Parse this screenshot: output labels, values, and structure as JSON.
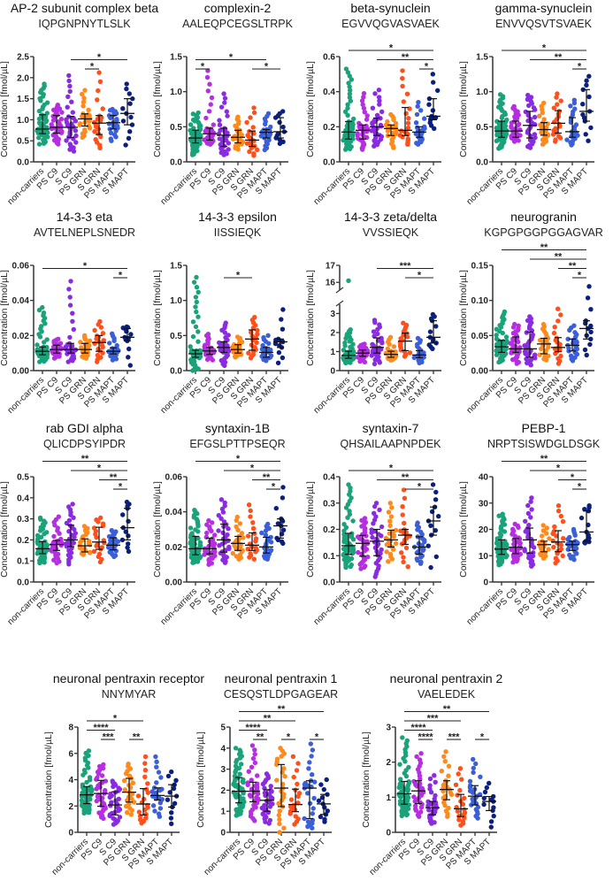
{
  "figure": {
    "y_axis_label": "Concentration [fmol/µL]",
    "groups": [
      "non-carriers",
      "PS C9",
      "S C9",
      "PS GRN",
      "S GRN",
      "PS MAPT",
      "S MAPT"
    ],
    "group_colors": [
      "#1aa37a",
      "#b52fe0",
      "#8a2be2",
      "#ff8a1c",
      "#ff4f1a",
      "#3b5fd8",
      "#0b1f7c"
    ],
    "group_sizes": [
      60,
      35,
      32,
      25,
      20,
      25,
      13
    ]
  },
  "chart_data": [
    {
      "type": "scatter",
      "title": "AP-2 subunit complex beta",
      "peptide": "IQPGNPNYTLSLK",
      "ylim": [
        0,
        2.5
      ],
      "yticks": [
        0,
        0.5,
        1,
        1.5,
        2,
        2.5
      ],
      "ytick_labels": [
        "0.0",
        "0.5",
        "1.0",
        "1.5",
        "2.0",
        "2.5"
      ],
      "median": [
        0.78,
        0.82,
        0.82,
        1.02,
        0.92,
        0.93,
        1.15
      ],
      "q1": [
        0.67,
        0.68,
        0.58,
        0.85,
        0.65,
        0.78,
        0.88
      ],
      "q3": [
        1.12,
        1.1,
        1.08,
        1.14,
        1.1,
        1.1,
        1.5
      ],
      "min": [
        0.42,
        0.42,
        0.25,
        0.58,
        0.33,
        0.5,
        0.4
      ],
      "max": [
        1.85,
        1.35,
        2.05,
        1.7,
        2.12,
        1.25,
        1.85
      ],
      "significance": [
        {
          "from": 2,
          "to": 6,
          "label": "*"
        },
        {
          "from": 3,
          "to": 4,
          "label": "*"
        }
      ]
    },
    {
      "type": "scatter",
      "title": "complexin-2",
      "peptide": "AALEQPCEGSLTRPK",
      "ylim": [
        0,
        1.5
      ],
      "yticks": [
        0,
        0.5,
        1,
        1.5
      ],
      "ytick_labels": [
        "0.0",
        "0.5",
        "1.0",
        "1.5"
      ],
      "median": [
        0.34,
        0.4,
        0.38,
        0.35,
        0.31,
        0.42,
        0.43
      ],
      "q1": [
        0.27,
        0.31,
        0.22,
        0.27,
        0.22,
        0.34,
        0.34
      ],
      "q3": [
        0.45,
        0.48,
        0.48,
        0.45,
        0.44,
        0.46,
        0.63
      ],
      "min": [
        0.1,
        0.25,
        0.1,
        0.18,
        0.09,
        0.17,
        0.26
      ],
      "max": [
        0.7,
        1.3,
        0.97,
        0.64,
        0.77,
        0.69,
        0.72
      ],
      "significance": [
        {
          "from": 0,
          "to": 5,
          "label": "*"
        },
        {
          "from": 0,
          "to": 1,
          "label": "*"
        },
        {
          "from": 4,
          "to": 6,
          "label": "*"
        }
      ]
    },
    {
      "type": "scatter",
      "title": "beta-synuclein",
      "peptide": "EGVVQGVASVAEK",
      "ylim": [
        0,
        0.6
      ],
      "yticks": [
        0,
        0.2,
        0.4,
        0.6
      ],
      "ytick_labels": [
        "0.0",
        "0.2",
        "0.4",
        "0.6"
      ],
      "median": [
        0.17,
        0.18,
        0.2,
        0.19,
        0.18,
        0.17,
        0.26
      ],
      "q1": [
        0.13,
        0.13,
        0.15,
        0.15,
        0.15,
        0.14,
        0.24
      ],
      "q3": [
        0.23,
        0.21,
        0.25,
        0.21,
        0.31,
        0.2,
        0.36
      ],
      "min": [
        0.07,
        0.07,
        0.09,
        0.08,
        0.1,
        0.1,
        0.19
      ],
      "max": [
        0.53,
        0.39,
        0.41,
        0.27,
        0.52,
        0.34,
        0.5
      ],
      "significance": [
        {
          "from": 0,
          "to": 6,
          "label": "*"
        },
        {
          "from": 2,
          "to": 6,
          "label": "**"
        },
        {
          "from": 5,
          "to": 6,
          "label": "*"
        }
      ]
    },
    {
      "type": "scatter",
      "title": "gamma-synuclein",
      "peptide": "ENVVQSVTSVAEK",
      "ylim": [
        0,
        1.5
      ],
      "yticks": [
        0,
        0.5,
        1,
        1.5
      ],
      "ytick_labels": [
        "0.0",
        "0.5",
        "1.0",
        "1.5"
      ],
      "median": [
        0.44,
        0.44,
        0.52,
        0.46,
        0.55,
        0.43,
        0.72
      ],
      "q1": [
        0.35,
        0.35,
        0.34,
        0.38,
        0.41,
        0.35,
        0.58
      ],
      "q3": [
        0.58,
        0.58,
        0.72,
        0.56,
        0.73,
        0.63,
        1.03
      ],
      "min": [
        0.19,
        0.29,
        0.2,
        0.25,
        0.29,
        0.24,
        0.3
      ],
      "max": [
        0.96,
        0.79,
        0.95,
        0.84,
        0.97,
        0.88,
        1.22
      ],
      "significance": [
        {
          "from": 0,
          "to": 6,
          "label": "*"
        },
        {
          "from": 2,
          "to": 6,
          "label": "**"
        },
        {
          "from": 5,
          "to": 6,
          "label": "*"
        }
      ]
    },
    {
      "type": "scatter",
      "title": "14-3-3 eta",
      "peptide": "AVTELNEPLSNEDR",
      "ylim": [
        0,
        0.06
      ],
      "yticks": [
        0,
        0.02,
        0.04,
        0.06
      ],
      "ytick_labels": [
        "0.00",
        "0.02",
        "0.04",
        "0.06"
      ],
      "median": [
        0.011,
        0.012,
        0.012,
        0.012,
        0.016,
        0.011,
        0.019
      ],
      "q1": [
        0.009,
        0.01,
        0.01,
        0.01,
        0.011,
        0.0095,
        0.017
      ],
      "q3": [
        0.0135,
        0.0145,
        0.0155,
        0.0155,
        0.02,
        0.013,
        0.024
      ],
      "min": [
        0.005,
        0.007,
        0.005,
        0.007,
        0.005,
        0.006,
        0.003
      ],
      "max": [
        0.036,
        0.018,
        0.051,
        0.02,
        0.028,
        0.021,
        0.025
      ],
      "significance": [
        {
          "from": 0,
          "to": 6,
          "label": "*"
        },
        {
          "from": 5,
          "to": 6,
          "label": "*"
        }
      ]
    },
    {
      "type": "scatter",
      "title": "14-3-3 epsilon",
      "peptide": "IISSIEQK",
      "ylim": [
        0,
        1.5
      ],
      "yticks": [
        0,
        0.5,
        1,
        1.5
      ],
      "ytick_labels": [
        "0.0",
        "0.5",
        "1.0",
        "1.5"
      ],
      "median": [
        0.24,
        0.28,
        0.33,
        0.3,
        0.45,
        0.26,
        0.41
      ],
      "q1": [
        0.19,
        0.23,
        0.26,
        0.25,
        0.29,
        0.19,
        0.33
      ],
      "q3": [
        0.29,
        0.33,
        0.41,
        0.37,
        0.58,
        0.33,
        0.45
      ],
      "min": [
        0.0,
        0.15,
        0.07,
        0.19,
        0.18,
        0.14,
        0.11
      ],
      "max": [
        1.33,
        0.52,
        0.68,
        0.48,
        0.76,
        0.5,
        0.87
      ],
      "significance": [
        {
          "from": 2,
          "to": 4,
          "label": "*"
        }
      ]
    },
    {
      "type": "scatter",
      "title": "14-3-3 zeta/delta",
      "peptide": "VVSSIEQK",
      "ylim": [
        0,
        17
      ],
      "axis_break": [
        3.3,
        15.7
      ],
      "yticks": [
        0,
        1,
        2,
        3,
        16,
        17
      ],
      "ytick_labels": [
        "0",
        "1",
        "2",
        "3",
        "16",
        "17"
      ],
      "median": [
        0.8,
        0.92,
        1.22,
        0.85,
        1.55,
        0.82,
        1.75
      ],
      "q1": [
        0.65,
        0.75,
        0.92,
        0.7,
        1.05,
        0.68,
        1.45
      ],
      "q3": [
        1.02,
        1.08,
        1.72,
        1.02,
        1.97,
        1.05,
        2.62
      ],
      "min": [
        0.4,
        0.45,
        0.35,
        0.55,
        0.75,
        0.4,
        1.15
      ],
      "max": [
        2.15,
        1.4,
        2.65,
        1.75,
        2.5,
        1.7,
        2.95
      ],
      "outliers": [
        {
          "group": 0,
          "value": 16.1
        }
      ],
      "significance": [
        {
          "from": 2,
          "to": 6,
          "label": "***"
        },
        {
          "from": 4,
          "to": 6,
          "label": "*"
        }
      ]
    },
    {
      "type": "scatter",
      "title": "neurogranin",
      "peptide": "KGPGPGGPGGAGVAR",
      "ylim": [
        0,
        0.15
      ],
      "yticks": [
        0,
        0.05,
        0.1,
        0.15
      ],
      "ytick_labels": [
        "0.00",
        "0.05",
        "0.10",
        "0.15"
      ],
      "median": [
        0.034,
        0.031,
        0.031,
        0.038,
        0.033,
        0.036,
        0.06
      ],
      "q1": [
        0.026,
        0.026,
        0.019,
        0.024,
        0.027,
        0.028,
        0.045
      ],
      "q3": [
        0.043,
        0.048,
        0.055,
        0.046,
        0.047,
        0.045,
        0.071
      ],
      "min": [
        0.012,
        0.01,
        0.008,
        0.015,
        0.01,
        0.014,
        0.022
      ],
      "max": [
        0.084,
        0.066,
        0.077,
        0.066,
        0.088,
        0.064,
        0.12
      ],
      "significance": [
        {
          "from": 0,
          "to": 6,
          "label": "**"
        },
        {
          "from": 2,
          "to": 6,
          "label": "**"
        },
        {
          "from": 4,
          "to": 6,
          "label": "**"
        },
        {
          "from": 5,
          "to": 6,
          "label": "*"
        }
      ]
    },
    {
      "type": "scatter",
      "title": "rab GDI alpha",
      "peptide": "QLICDPSYIPDR",
      "ylim": [
        0,
        0.5
      ],
      "yticks": [
        0,
        0.1,
        0.2,
        0.3,
        0.4,
        0.5
      ],
      "ytick_labels": [
        "0.0",
        "0.1",
        "0.2",
        "0.3",
        "0.4",
        "0.5"
      ],
      "median": [
        0.158,
        0.178,
        0.2,
        0.172,
        0.19,
        0.175,
        0.258
      ],
      "q1": [
        0.135,
        0.15,
        0.168,
        0.143,
        0.155,
        0.153,
        0.2
      ],
      "q3": [
        0.192,
        0.197,
        0.27,
        0.205,
        0.26,
        0.21,
        0.35
      ],
      "min": [
        0.09,
        0.09,
        0.085,
        0.13,
        0.095,
        0.12,
        0.145
      ],
      "max": [
        0.305,
        0.31,
        0.37,
        0.265,
        0.305,
        0.245,
        0.38
      ],
      "significance": [
        {
          "from": 0,
          "to": 6,
          "label": "**"
        },
        {
          "from": 2,
          "to": 6,
          "label": "*"
        },
        {
          "from": 4,
          "to": 6,
          "label": "**"
        },
        {
          "from": 5,
          "to": 6,
          "label": "*"
        }
      ]
    },
    {
      "type": "scatter",
      "title": "syntaxin-1B",
      "peptide": "EFGSLPTTPSEQR",
      "ylim": [
        0,
        0.06
      ],
      "yticks": [
        0,
        0.02,
        0.04,
        0.06
      ],
      "ytick_labels": [
        "0.00",
        "0.02",
        "0.04",
        "0.06"
      ],
      "median": [
        0.019,
        0.019,
        0.024,
        0.022,
        0.021,
        0.02,
        0.032
      ],
      "q1": [
        0.0155,
        0.016,
        0.017,
        0.018,
        0.018,
        0.0165,
        0.025
      ],
      "q3": [
        0.026,
        0.025,
        0.033,
        0.026,
        0.028,
        0.0255,
        0.036
      ],
      "min": [
        0.011,
        0.01,
        0.011,
        0.013,
        0.013,
        0.013,
        0.022
      ],
      "max": [
        0.041,
        0.035,
        0.047,
        0.037,
        0.044,
        0.033,
        0.054
      ],
      "significance": [
        {
          "from": 0,
          "to": 6,
          "label": "*"
        },
        {
          "from": 2,
          "to": 6,
          "label": "*"
        },
        {
          "from": 4,
          "to": 6,
          "label": "**"
        },
        {
          "from": 5,
          "to": 6,
          "label": "*"
        }
      ]
    },
    {
      "type": "scatter",
      "title": "syntaxin-7",
      "peptide": "QHSAILAAPNPDEK",
      "ylim": [
        0,
        0.4
      ],
      "yticks": [
        0,
        0.1,
        0.2,
        0.3,
        0.4
      ],
      "ytick_labels": [
        "0.0",
        "0.1",
        "0.2",
        "0.3",
        "0.4"
      ],
      "median": [
        0.138,
        0.147,
        0.155,
        0.16,
        0.178,
        0.133,
        0.232
      ],
      "q1": [
        0.105,
        0.098,
        0.1,
        0.133,
        0.143,
        0.106,
        0.178
      ],
      "q3": [
        0.185,
        0.177,
        0.2,
        0.197,
        0.2,
        0.172,
        0.285
      ],
      "min": [
        0.055,
        0.05,
        0.02,
        0.078,
        0.058,
        0.07,
        0.055
      ],
      "max": [
        0.37,
        0.242,
        0.3,
        0.3,
        0.35,
        0.225,
        0.37
      ],
      "significance": [
        {
          "from": 0,
          "to": 6,
          "label": "*"
        },
        {
          "from": 2,
          "to": 6,
          "label": "**"
        },
        {
          "from": 4,
          "to": 6,
          "label": "*"
        }
      ]
    },
    {
      "type": "scatter",
      "title": "PEBP-1",
      "peptide": "NRPTSISWDGLDSGK",
      "ylim": [
        0,
        40
      ],
      "yticks": [
        0,
        10,
        20,
        30,
        40
      ],
      "ytick_labels": [
        "0",
        "10",
        "20",
        "30",
        "40"
      ],
      "median": [
        12.5,
        13.2,
        16,
        14.2,
        15.2,
        14.2,
        19
      ],
      "q1": [
        10.5,
        10.8,
        11,
        11.5,
        11.5,
        12,
        15.5
      ],
      "q3": [
        16,
        16.5,
        20.5,
        15.5,
        19.5,
        15.5,
        27
      ],
      "min": [
        6.5,
        7.5,
        6,
        9,
        7.2,
        8.5,
        14.8
      ],
      "max": [
        25.8,
        22,
        32,
        21.5,
        29,
        20,
        29
      ],
      "significance": [
        {
          "from": 0,
          "to": 6,
          "label": "**"
        },
        {
          "from": 2,
          "to": 6,
          "label": "*"
        },
        {
          "from": 4,
          "to": 6,
          "label": "*"
        },
        {
          "from": 5,
          "to": 6,
          "label": "*"
        }
      ]
    },
    {
      "type": "scatter",
      "title": "neuronal pentraxin receptor",
      "peptide": "NNYMYAR",
      "ylim": [
        0,
        8
      ],
      "yticks": [
        0,
        2,
        4,
        6,
        8
      ],
      "ytick_labels": [
        "0",
        "2",
        "4",
        "6",
        "8"
      ],
      "median": [
        2.85,
        2.95,
        2.08,
        3.05,
        2.15,
        2.8,
        2.75
      ],
      "q1": [
        2.18,
        1.98,
        1.32,
        2.3,
        1.32,
        2.45,
        1.92
      ],
      "q3": [
        3.48,
        3.95,
        3.08,
        4.1,
        3.32,
        3.38,
        3.62
      ],
      "min": [
        1.45,
        1.05,
        0.6,
        1.35,
        0.7,
        1.2,
        0.65
      ],
      "max": [
        6.2,
        5.15,
        3.9,
        5.2,
        5.75,
        5.75,
        4.6
      ],
      "significance": [
        {
          "from": 0,
          "to": 4,
          "label": "*"
        },
        {
          "from": 0,
          "to": 2,
          "label": "****"
        },
        {
          "from": 1,
          "to": 2,
          "label": "***"
        },
        {
          "from": 3,
          "to": 4,
          "label": "**"
        }
      ]
    },
    {
      "type": "scatter",
      "title": "neuronal pentraxin 1",
      "peptide": "CESQSTLDPGAGEAR",
      "ylim": [
        0,
        5
      ],
      "yticks": [
        0,
        1,
        2,
        3,
        4,
        5
      ],
      "ytick_labels": [
        "0",
        "1",
        "2",
        "3",
        "4",
        "5"
      ],
      "median": [
        1.95,
        1.95,
        1.52,
        2.1,
        1.32,
        2.1,
        1.35
      ],
      "q1": [
        1.4,
        1.45,
        1.0,
        1.22,
        0.98,
        0.65,
        0.85
      ],
      "q3": [
        2.6,
        2.38,
        2.02,
        3.22,
        2.05,
        2.45,
        1.8
      ],
      "min": [
        0.8,
        0.55,
        0.42,
        0.0,
        0.38,
        0.2,
        0.5
      ],
      "max": [
        4.0,
        4.12,
        2.78,
        4.0,
        3.6,
        4.2,
        2.5
      ],
      "significance": [
        {
          "from": 0,
          "to": 6,
          "label": "**"
        },
        {
          "from": 0,
          "to": 4,
          "label": "**"
        },
        {
          "from": 0,
          "to": 2,
          "label": "****"
        },
        {
          "from": 1,
          "to": 2,
          "label": "**"
        },
        {
          "from": 3,
          "to": 4,
          "label": "*"
        },
        {
          "from": 5,
          "to": 6,
          "label": "*"
        }
      ]
    },
    {
      "type": "scatter",
      "title": "neuronal pentraxin 2",
      "peptide": "VAELEDEK",
      "ylim": [
        0,
        3
      ],
      "yticks": [
        0,
        1,
        2,
        3
      ],
      "ytick_labels": [
        "0",
        "1",
        "2",
        "3"
      ],
      "median": [
        1.1,
        1.18,
        0.7,
        1.22,
        0.67,
        1.03,
        0.88
      ],
      "q1": [
        0.8,
        0.82,
        0.5,
        0.93,
        0.45,
        0.78,
        0.62
      ],
      "q3": [
        1.45,
        1.47,
        0.88,
        1.47,
        1.08,
        1.33,
        1.02
      ],
      "min": [
        0.47,
        0.45,
        0.25,
        0.45,
        0.2,
        0.4,
        0.15
      ],
      "max": [
        2.7,
        2.25,
        1.62,
        2.3,
        1.82,
        2.08,
        1.4
      ],
      "significance": [
        {
          "from": 0,
          "to": 6,
          "label": "**"
        },
        {
          "from": 0,
          "to": 4,
          "label": "***"
        },
        {
          "from": 0,
          "to": 2,
          "label": "****"
        },
        {
          "from": 1,
          "to": 2,
          "label": "****"
        },
        {
          "from": 3,
          "to": 4,
          "label": "***"
        },
        {
          "from": 5,
          "to": 6,
          "label": "*"
        }
      ]
    }
  ]
}
